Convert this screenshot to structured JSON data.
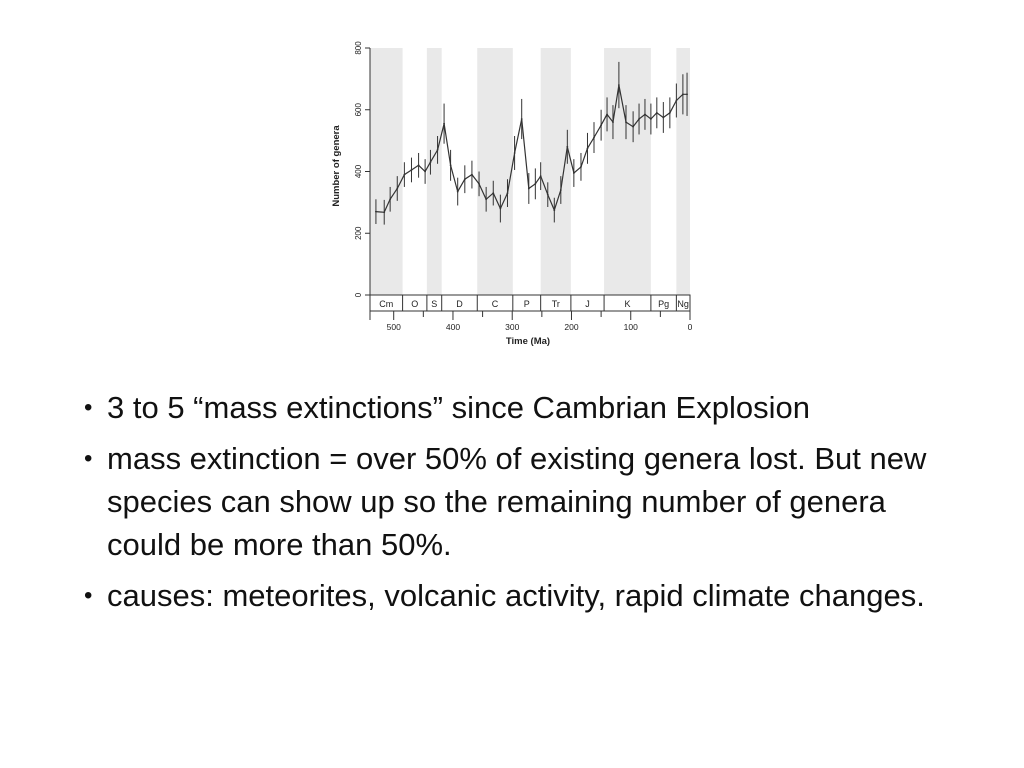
{
  "chart_data": {
    "type": "line",
    "title": "",
    "xlabel": "Time (Ma)",
    "ylabel": "Number of genera",
    "xlim": [
      540,
      0
    ],
    "ylim": [
      0,
      800
    ],
    "x_ticks": [
      500,
      400,
      300,
      200,
      100,
      0
    ],
    "y_ticks": [
      0,
      200,
      400,
      600,
      800
    ],
    "error_bars": true,
    "series": [
      {
        "x": [
          530,
          516,
          506,
          494,
          482,
          470,
          458,
          447,
          438,
          426,
          415,
          404,
          392,
          380,
          368,
          356,
          344,
          332,
          320,
          308,
          296,
          284,
          272,
          261,
          252,
          240,
          229,
          218,
          207,
          196,
          184,
          173,
          162,
          150,
          140,
          130,
          120,
          108,
          96,
          86,
          76,
          66,
          56,
          45,
          34,
          23,
          12,
          5
        ],
        "y": [
          270,
          268,
          310,
          345,
          390,
          405,
          420,
          400,
          430,
          470,
          555,
          420,
          335,
          375,
          390,
          360,
          310,
          330,
          280,
          330,
          460,
          570,
          345,
          360,
          385,
          325,
          275,
          340,
          480,
          395,
          415,
          475,
          510,
          550,
          585,
          560,
          680,
          560,
          545,
          570,
          585,
          570,
          590,
          575,
          590,
          630,
          650,
          650
        ],
        "err": [
          40,
          40,
          40,
          40,
          40,
          40,
          40,
          40,
          40,
          45,
          65,
          50,
          45,
          45,
          45,
          40,
          40,
          40,
          45,
          45,
          55,
          65,
          50,
          50,
          45,
          40,
          40,
          45,
          55,
          45,
          45,
          50,
          50,
          50,
          55,
          55,
          75,
          55,
          50,
          50,
          50,
          50,
          50,
          50,
          50,
          55,
          65,
          70
        ]
      }
    ],
    "periods": [
      {
        "label": "Cm",
        "start": 541,
        "end": 485,
        "shaded": true
      },
      {
        "label": "O",
        "start": 485,
        "end": 444,
        "shaded": false
      },
      {
        "label": "S",
        "start": 444,
        "end": 419,
        "shaded": true
      },
      {
        "label": "D",
        "start": 419,
        "end": 359,
        "shaded": false
      },
      {
        "label": "C",
        "start": 359,
        "end": 299,
        "shaded": true
      },
      {
        "label": "P",
        "start": 299,
        "end": 252,
        "shaded": false
      },
      {
        "label": "Tr",
        "start": 252,
        "end": 201,
        "shaded": true
      },
      {
        "label": "J",
        "start": 201,
        "end": 145,
        "shaded": false
      },
      {
        "label": "K",
        "start": 145,
        "end": 66,
        "shaded": true
      },
      {
        "label": "Pg",
        "start": 66,
        "end": 23,
        "shaded": false
      },
      {
        "label": "Ng",
        "start": 23,
        "end": 0,
        "shaded": true
      }
    ],
    "colors": {
      "line": "#333333",
      "band": "#e9e9e9"
    }
  },
  "bullets": [
    "3 to 5 “mass extinctions” since Cambrian Explosion",
    "mass extinction = over 50% of existing genera lost. But new species can show up so the remaining number of genera could be more than 50%.",
    "causes: meteorites, volcanic activity, rapid climate changes."
  ],
  "bullet_symbol": "•"
}
